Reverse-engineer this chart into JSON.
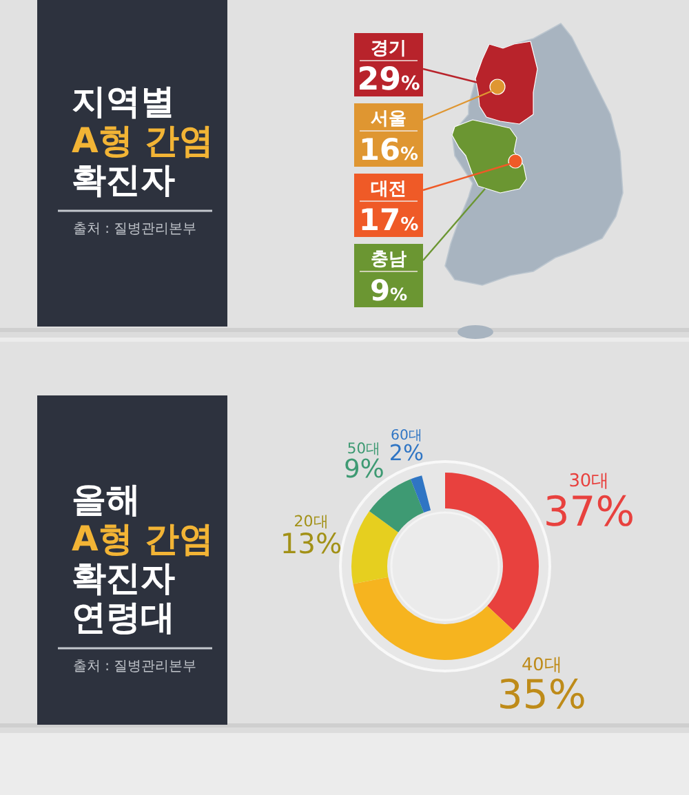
{
  "chart_data": [
    {
      "type": "other",
      "title": "지역별 **A형 간염** 확진자",
      "annotations": [
        "출처 : 질병관리본부"
      ],
      "categories": [
        "경기",
        "서울",
        "대전",
        "충남"
      ],
      "values": [
        29,
        16,
        17,
        9
      ],
      "value_labels": [
        "29%",
        "16%",
        "17%",
        "9%"
      ],
      "colors": [
        "#b8232b",
        "#df9631",
        "#ef5a27",
        "#6b9632"
      ]
    },
    {
      "type": "donut",
      "title": "올해 **A형 간염** 확진자 연령대",
      "annotations": [
        "출처 : 질병관리본부"
      ],
      "categories": [
        "30대",
        "40대",
        "20대",
        "50대",
        "60대"
      ],
      "values": [
        37,
        35,
        13,
        9,
        2
      ],
      "value_labels": [
        "37%",
        "35%",
        "13%",
        "9%",
        "2%"
      ],
      "colors": [
        "#e8413e",
        "#f6b41f",
        "#e6cf1f",
        "#3e9a73",
        "#2f75c4"
      ]
    }
  ]
}
